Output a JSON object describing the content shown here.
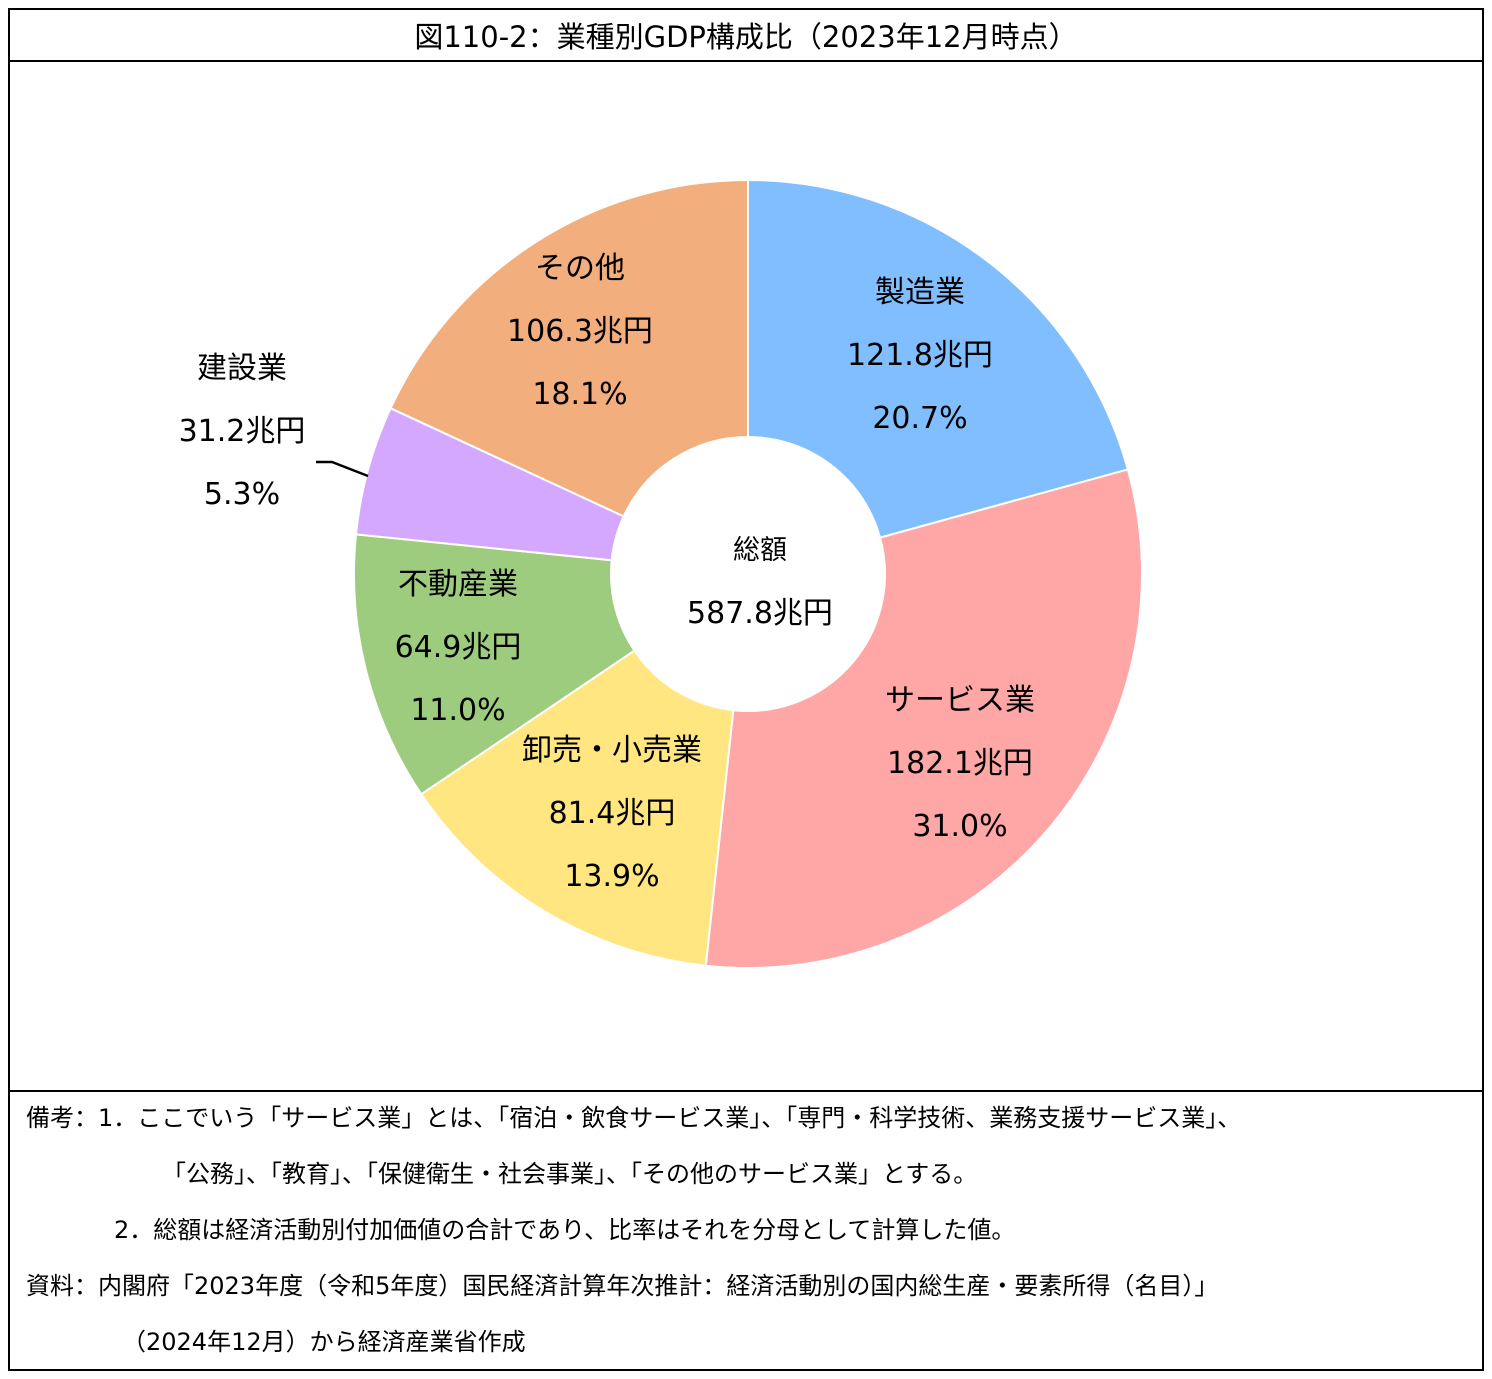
{
  "title": "図110-2：業種別GDP構成比（2023年12月時点）",
  "chart_data": {
    "type": "pie",
    "donut": true,
    "center_label": "総額",
    "center_value": "587.8兆円",
    "slices": [
      {
        "name": "製造業",
        "value_label": "121.8兆円",
        "percent_label": "20.7%",
        "value": 121.8,
        "color": "#80BEFF"
      },
      {
        "name": "サービス業",
        "value_label": "182.1兆円",
        "percent_label": "31.0%",
        "value": 182.1,
        "color": "#FFA6A6"
      },
      {
        "name": "卸売・小売業",
        "value_label": "81.4兆円",
        "percent_label": "13.9%",
        "value": 81.4,
        "color": "#FFE680"
      },
      {
        "name": "不動産業",
        "value_label": "64.9兆円",
        "percent_label": "11.0%",
        "value": 64.9,
        "color": "#9DCC7E"
      },
      {
        "name": "建設業",
        "value_label": "31.2兆円",
        "percent_label": "5.3%",
        "value": 31.2,
        "color": "#D5A8FF"
      },
      {
        "name": "その他",
        "value_label": "106.3兆円",
        "percent_label": "18.1%",
        "value": 106.3,
        "color": "#F3AE7E"
      }
    ]
  },
  "notes": {
    "line1": "備考：1．ここでいう「サービス業」とは、「宿泊・飲食サービス業」、「専門・科学技術、業務支援サービス業」、",
    "line2": "「公務」、「教育」、「保健衛生・社会事業」、「その他のサービス業」とする。",
    "line3": "2．総額は経済活動別付加価値の合計であり、比率はそれを分母として計算した値。",
    "line4": "資料：内閣府「2023年度（令和5年度）国民経済計算年次推計：経済活動別の国内総生産・要素所得（名目）」",
    "line5": "（2024年12月）から経済産業省作成"
  }
}
